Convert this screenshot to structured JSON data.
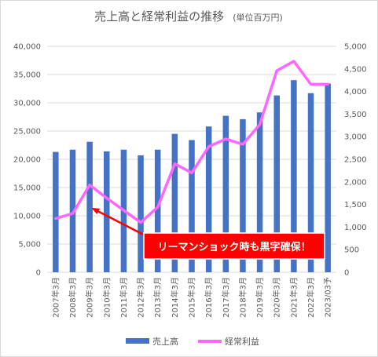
{
  "chart_data": {
    "type": "bar",
    "title": "売上高と経常利益の推移",
    "subtitle": "(単位百万円)",
    "categories": [
      "2007年3月",
      "2008年3月",
      "2009年3月",
      "2010年3月",
      "2011年3月",
      "2012年3月",
      "2013年3月",
      "2014年3月",
      "2015年3月",
      "2016年3月",
      "2017年3月",
      "2018年3月",
      "2019年3月",
      "2020年3月",
      "2021年3月",
      "2022年3月",
      "2023/03予"
    ],
    "series": [
      {
        "name": "売上高",
        "type": "bar",
        "axis": "left",
        "color": "#4472c4",
        "values": [
          21300,
          21700,
          23100,
          21400,
          21700,
          20700,
          21700,
          24500,
          23400,
          25800,
          27700,
          27100,
          28300,
          31300,
          34000,
          31700,
          33400
        ]
      },
      {
        "name": "経常利益",
        "type": "line",
        "axis": "right",
        "color": "#ff66ff",
        "values": [
          1190,
          1300,
          1930,
          1640,
          1370,
          1100,
          1440,
          2400,
          2200,
          2780,
          2950,
          2830,
          3270,
          4460,
          4670,
          4160,
          4160
        ]
      }
    ],
    "y_left": {
      "min": 0,
      "max": 40000,
      "step": 5000,
      "ticks": [
        "0",
        "5,000",
        "10,000",
        "15,000",
        "20,000",
        "25,000",
        "30,000",
        "35,000",
        "40,000"
      ]
    },
    "y_right": {
      "min": 0,
      "max": 5000,
      "step": 500,
      "ticks": [
        "0",
        "500",
        "1,000",
        "1,500",
        "2,000",
        "2,500",
        "3,000",
        "3,500",
        "4,000",
        "4,500",
        "5,000"
      ]
    },
    "grid": true,
    "legend": "bottom",
    "annotation": {
      "text": "リーマンショック時も黒字確保！",
      "target_category": "2009年3月",
      "box_color": "#ff0000"
    }
  }
}
